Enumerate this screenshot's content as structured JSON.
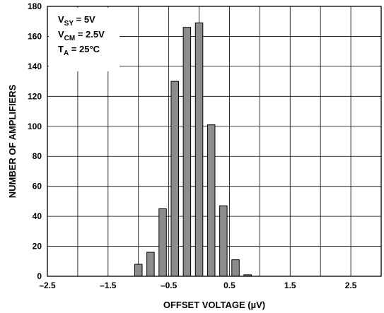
{
  "chart_data": {
    "type": "bar",
    "xlabel": "OFFSET VOLTAGE (µV)",
    "ylabel": "NUMBER OF AMPLIFIERS",
    "xlim": [
      -2.5,
      3.0
    ],
    "ylim": [
      0,
      180
    ],
    "x_ticks": [
      "–2.5",
      "–1.5",
      "–0.5",
      "0.5",
      "1.5",
      "2.5"
    ],
    "x_tick_values": [
      -2.5,
      -1.5,
      -0.5,
      0.5,
      1.5,
      2.5
    ],
    "y_ticks": [
      0,
      20,
      40,
      60,
      80,
      100,
      120,
      140,
      160,
      180
    ],
    "grid": true,
    "bar_color": "#8c8c8c",
    "x": [
      -1.0,
      -0.8,
      -0.6,
      -0.4,
      -0.2,
      0.0,
      0.2,
      0.4,
      0.6,
      0.8,
      1.0,
      1.2
    ],
    "values": [
      8,
      16,
      45,
      130,
      166,
      169,
      101,
      47,
      11,
      1,
      0,
      0
    ],
    "conditions": [
      {
        "main": "V",
        "sub": "SY",
        "rest": " = 5V"
      },
      {
        "main": "V",
        "sub": "CM",
        "rest": " = 2.5V"
      },
      {
        "main": "T",
        "sub": "A",
        "rest": " = 25°C"
      }
    ]
  }
}
